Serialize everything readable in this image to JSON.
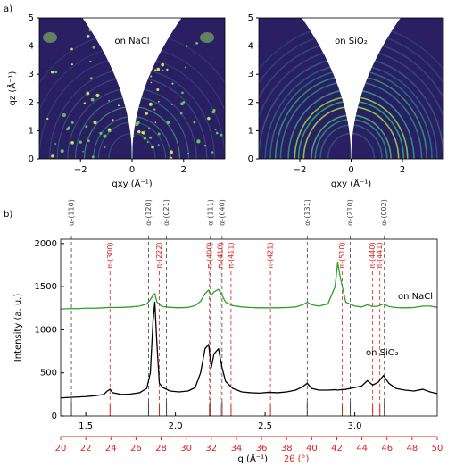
{
  "panels": [
    "a)",
    "b)"
  ],
  "chart_data": [
    {
      "type": "image",
      "title": "on NaCl",
      "xlabel": "qxy (Å⁻¹)",
      "ylabel": "qz (Å⁻¹)",
      "xlim": [
        -3.6,
        3.6
      ],
      "xticks": [
        {
          "value": -2,
          "label": "−2"
        },
        0,
        2
      ],
      "ylim": [
        0,
        5
      ],
      "yticks": [
        0,
        1,
        2,
        3,
        4,
        5
      ]
    },
    {
      "type": "image",
      "title": "on SiO₂",
      "xlabel": "qxy (Å⁻¹)",
      "xlim": [
        -3.6,
        3.6
      ],
      "xticks": [
        {
          "value": -2,
          "label": "−2"
        },
        0,
        2
      ],
      "ylim": [
        0,
        5
      ],
      "yticks": [
        0,
        1,
        2,
        3,
        4,
        5
      ]
    },
    {
      "type": "line",
      "xlabel": "q (Å⁻¹)",
      "ylabel": "Intensity (a. u.)",
      "x2label": "2θ (°)",
      "x2color": "#e0201b",
      "x": [
        1.36,
        1.4,
        1.45,
        1.5,
        1.55,
        1.6,
        1.62,
        1.635,
        1.65,
        1.7,
        1.75,
        1.8,
        1.84,
        1.86,
        1.875,
        1.885,
        1.895,
        1.91,
        1.93,
        1.97,
        2.02,
        2.07,
        2.11,
        2.14,
        2.165,
        2.185,
        2.2,
        2.215,
        2.24,
        2.26,
        2.28,
        2.32,
        2.37,
        2.42,
        2.47,
        2.52,
        2.57,
        2.62,
        2.67,
        2.71,
        2.735,
        2.76,
        2.8,
        2.85,
        2.89,
        2.905,
        2.92,
        2.95,
        3.0,
        3.04,
        3.07,
        3.1,
        3.13,
        3.16,
        3.19,
        3.23,
        3.28,
        3.33,
        3.38,
        3.42,
        3.46
      ],
      "series": [
        {
          "name": "on NaCl",
          "color": "#2e9e2a",
          "values": [
            1240,
            1245,
            1245,
            1250,
            1250,
            1255,
            1258,
            1260,
            1258,
            1260,
            1265,
            1275,
            1300,
            1350,
            1400,
            1420,
            1330,
            1290,
            1270,
            1260,
            1255,
            1260,
            1280,
            1330,
            1420,
            1460,
            1400,
            1440,
            1470,
            1400,
            1320,
            1280,
            1265,
            1258,
            1255,
            1255,
            1255,
            1258,
            1265,
            1290,
            1320,
            1290,
            1275,
            1300,
            1500,
            1780,
            1600,
            1320,
            1275,
            1265,
            1290,
            1270,
            1275,
            1300,
            1270,
            1258,
            1255,
            1258,
            1275,
            1275,
            1260
          ]
        },
        {
          "name": "on SiO₂",
          "color": "#000000",
          "values": [
            210,
            215,
            220,
            225,
            235,
            250,
            290,
            310,
            270,
            250,
            255,
            270,
            320,
            500,
            1100,
            1320,
            900,
            380,
            330,
            290,
            280,
            290,
            330,
            500,
            780,
            830,
            560,
            720,
            780,
            560,
            400,
            320,
            280,
            270,
            265,
            275,
            270,
            280,
            300,
            340,
            380,
            320,
            300,
            300,
            305,
            300,
            305,
            310,
            330,
            350,
            410,
            360,
            390,
            470,
            380,
            320,
            300,
            290,
            310,
            280,
            260
          ]
        }
      ],
      "xlim": [
        1.36,
        3.46
      ],
      "xticks": [
        1.5,
        {
          "value": 2,
          "label": "2.0"
        },
        2.5,
        {
          "value": 3,
          "label": "3.0"
        }
      ],
      "ylim": [
        0,
        2050
      ],
      "yticks": [
        0,
        500,
        1000,
        1500,
        2000
      ],
      "x2lim": [
        20,
        50
      ],
      "x2ticks": [
        20,
        22,
        24,
        26,
        28,
        30,
        32,
        34,
        36,
        38,
        40,
        42,
        44,
        46,
        48,
        50
      ],
      "reference_lines": [
        {
          "color": "#444444",
          "lines": [
            {
              "label": "α-(110)",
              "x": 1.42
            },
            {
              "label": "α-(120)",
              "x": 1.85
            },
            {
              "label": "α-(021)",
              "x": 1.95
            },
            {
              "label": "α-(111)",
              "x": 2.195
            },
            {
              "label": "α-(040)",
              "x": 2.26
            },
            {
              "label": "α-(131)",
              "x": 2.735
            },
            {
              "label": "α-(210)",
              "x": 2.975
            },
            {
              "label": "α-(002)",
              "x": 3.165
            }
          ]
        },
        {
          "color": "#e0201b",
          "lines": [
            {
              "label": "π-(300)",
              "x": 1.635
            },
            {
              "label": "π-(222)",
              "x": 1.91
            },
            {
              "label": "π-(400)",
              "x": 2.19
            },
            {
              "label": "π-(410)",
              "x": 2.25
            },
            {
              "label": "π-(411)",
              "x": 2.31
            },
            {
              "label": "π-(421)",
              "x": 2.53
            },
            {
              "label": "π-(510)",
              "x": 2.93
            },
            {
              "label": "π-(440)",
              "x": 3.1
            },
            {
              "label": "π-(441)",
              "x": 3.14
            }
          ]
        }
      ]
    }
  ]
}
